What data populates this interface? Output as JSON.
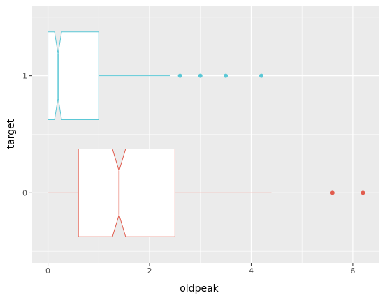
{
  "chart_data": {
    "type": "boxplot",
    "orientation": "horizontal",
    "notched": true,
    "xlabel": "oldpeak",
    "ylabel": "target",
    "xlim": [
      -0.31,
      6.51
    ],
    "ylim": [
      -0.6,
      1.6
    ],
    "x_ticks": [
      0,
      2,
      4,
      6
    ],
    "y_ticks": [
      0,
      1
    ],
    "grid": true,
    "background": "#EBEBEB",
    "gridline_color": "#FFFFFF",
    "series": [
      {
        "category": "0",
        "color": "#E15C4E",
        "whisker_low": 0.0,
        "q1": 0.6,
        "median": 1.4,
        "q3": 2.5,
        "whisker_high": 4.4,
        "notch_low": 1.27,
        "notch_high": 1.53,
        "outliers": [
          5.6,
          6.2
        ]
      },
      {
        "category": "1",
        "color": "#5BC8D6",
        "whisker_low": 0.0,
        "q1": 0.0,
        "median": 0.2,
        "q3": 1.0,
        "whisker_high": 2.4,
        "notch_low": 0.13,
        "notch_high": 0.27,
        "outliers": [
          2.6,
          3.0,
          3.5,
          4.2
        ]
      }
    ]
  }
}
